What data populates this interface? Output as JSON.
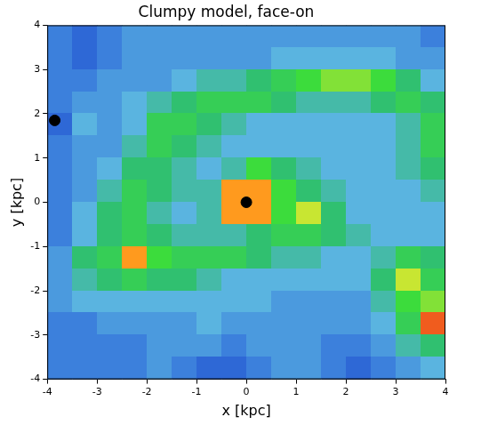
{
  "chart_data": {
    "type": "heatmap",
    "title": "Clumpy model, face-on",
    "x_label": "x [kpc]",
    "y_label": "y [kpc]",
    "xlim": [
      -4,
      4
    ],
    "ylim": [
      -4,
      4
    ],
    "xticks": [
      -4,
      -3,
      -2,
      -1,
      0,
      1,
      2,
      3,
      4
    ],
    "yticks": [
      -4,
      -3,
      -2,
      -1,
      0,
      1,
      2,
      3,
      4
    ],
    "grid": false,
    "zlim": [
      0,
      10
    ],
    "x": [
      -3.75,
      -3.25,
      -2.75,
      -2.25,
      -1.75,
      -1.25,
      -0.75,
      -0.25,
      0.25,
      0.75,
      1.25,
      1.75,
      2.25,
      2.75,
      3.25,
      3.75
    ],
    "y": [
      3.75,
      3.25,
      2.75,
      2.25,
      1.75,
      1.25,
      0.75,
      0.25,
      -0.25,
      -0.75,
      -1.25,
      -1.75,
      -2.25,
      -2.75,
      -3.25,
      -3.75
    ],
    "cells": [
      [
        3,
        2.5,
        3,
        3.5,
        3.5,
        3.5,
        3.5,
        3.5,
        3.5,
        3.5,
        3.5,
        3.5,
        3.5,
        3.5,
        3.5,
        3
      ],
      [
        3,
        2.5,
        3,
        3.5,
        3.5,
        3.5,
        3.5,
        3.5,
        3.5,
        4,
        4,
        4,
        4,
        4,
        3.5,
        3.5
      ],
      [
        3,
        3,
        3.5,
        3.5,
        3.5,
        4,
        4.5,
        4.5,
        5,
        5.5,
        6,
        6.5,
        6.5,
        6,
        5,
        4
      ],
      [
        3,
        3.5,
        3.5,
        4,
        4.5,
        5,
        5.5,
        5.5,
        5.5,
        5,
        4.5,
        4.5,
        4.5,
        5,
        5.5,
        5
      ],
      [
        2.5,
        4,
        3.5,
        4,
        5.5,
        5.5,
        5,
        4.5,
        4,
        4,
        4,
        4,
        4,
        4,
        4.5,
        5.5
      ],
      [
        3,
        3.5,
        3.5,
        4.5,
        5.5,
        5,
        4.5,
        4,
        4,
        4,
        4,
        4,
        4,
        4,
        4.5,
        5.5
      ],
      [
        3,
        3.5,
        4,
        5,
        5,
        4.5,
        4,
        4.5,
        6,
        5,
        4.5,
        4,
        4,
        4,
        4.5,
        5
      ],
      [
        3,
        3.5,
        4.5,
        5.5,
        5,
        4.5,
        4.5,
        8,
        8,
        6,
        5,
        4.5,
        4,
        4,
        4,
        4.5
      ],
      [
        3,
        4,
        5,
        5.5,
        4.5,
        4,
        4.5,
        8,
        8,
        6,
        7,
        5,
        4,
        4,
        4,
        4
      ],
      [
        3,
        4,
        5,
        5.5,
        5,
        4.5,
        4.5,
        4.5,
        5,
        5.5,
        5.5,
        5,
        4.5,
        4,
        4,
        4
      ],
      [
        3.5,
        5,
        5.5,
        8,
        6,
        5.5,
        5.5,
        5.5,
        5,
        4.5,
        4.5,
        4,
        4,
        4.5,
        5.5,
        5
      ],
      [
        3.5,
        4.5,
        5,
        5.5,
        5,
        5,
        4.5,
        4,
        4,
        4,
        4,
        4,
        4,
        5,
        7,
        5.5
      ],
      [
        3.5,
        4,
        4,
        4,
        4,
        4,
        4,
        4,
        4,
        3.5,
        3.5,
        3.5,
        3.5,
        4.5,
        6,
        6.5
      ],
      [
        3,
        3,
        3.5,
        3.5,
        3.5,
        3.5,
        4,
        3.5,
        3.5,
        3.5,
        3.5,
        3.5,
        3.5,
        4,
        5.5,
        8.5
      ],
      [
        3,
        3,
        3,
        3,
        3.5,
        3.5,
        3.5,
        3,
        3.5,
        3.5,
        3.5,
        3,
        3,
        3.5,
        4.5,
        5
      ],
      [
        3,
        3,
        3,
        3,
        3.5,
        3,
        2.5,
        2.5,
        3,
        3.5,
        3.5,
        3,
        2.5,
        3,
        3.5,
        4
      ]
    ],
    "series": [
      {
        "type": "scatter",
        "marker": "circle",
        "color": "#000000",
        "x": [
          -3.85,
          0
        ],
        "values": [
          1.85,
          0
        ]
      }
    ]
  }
}
